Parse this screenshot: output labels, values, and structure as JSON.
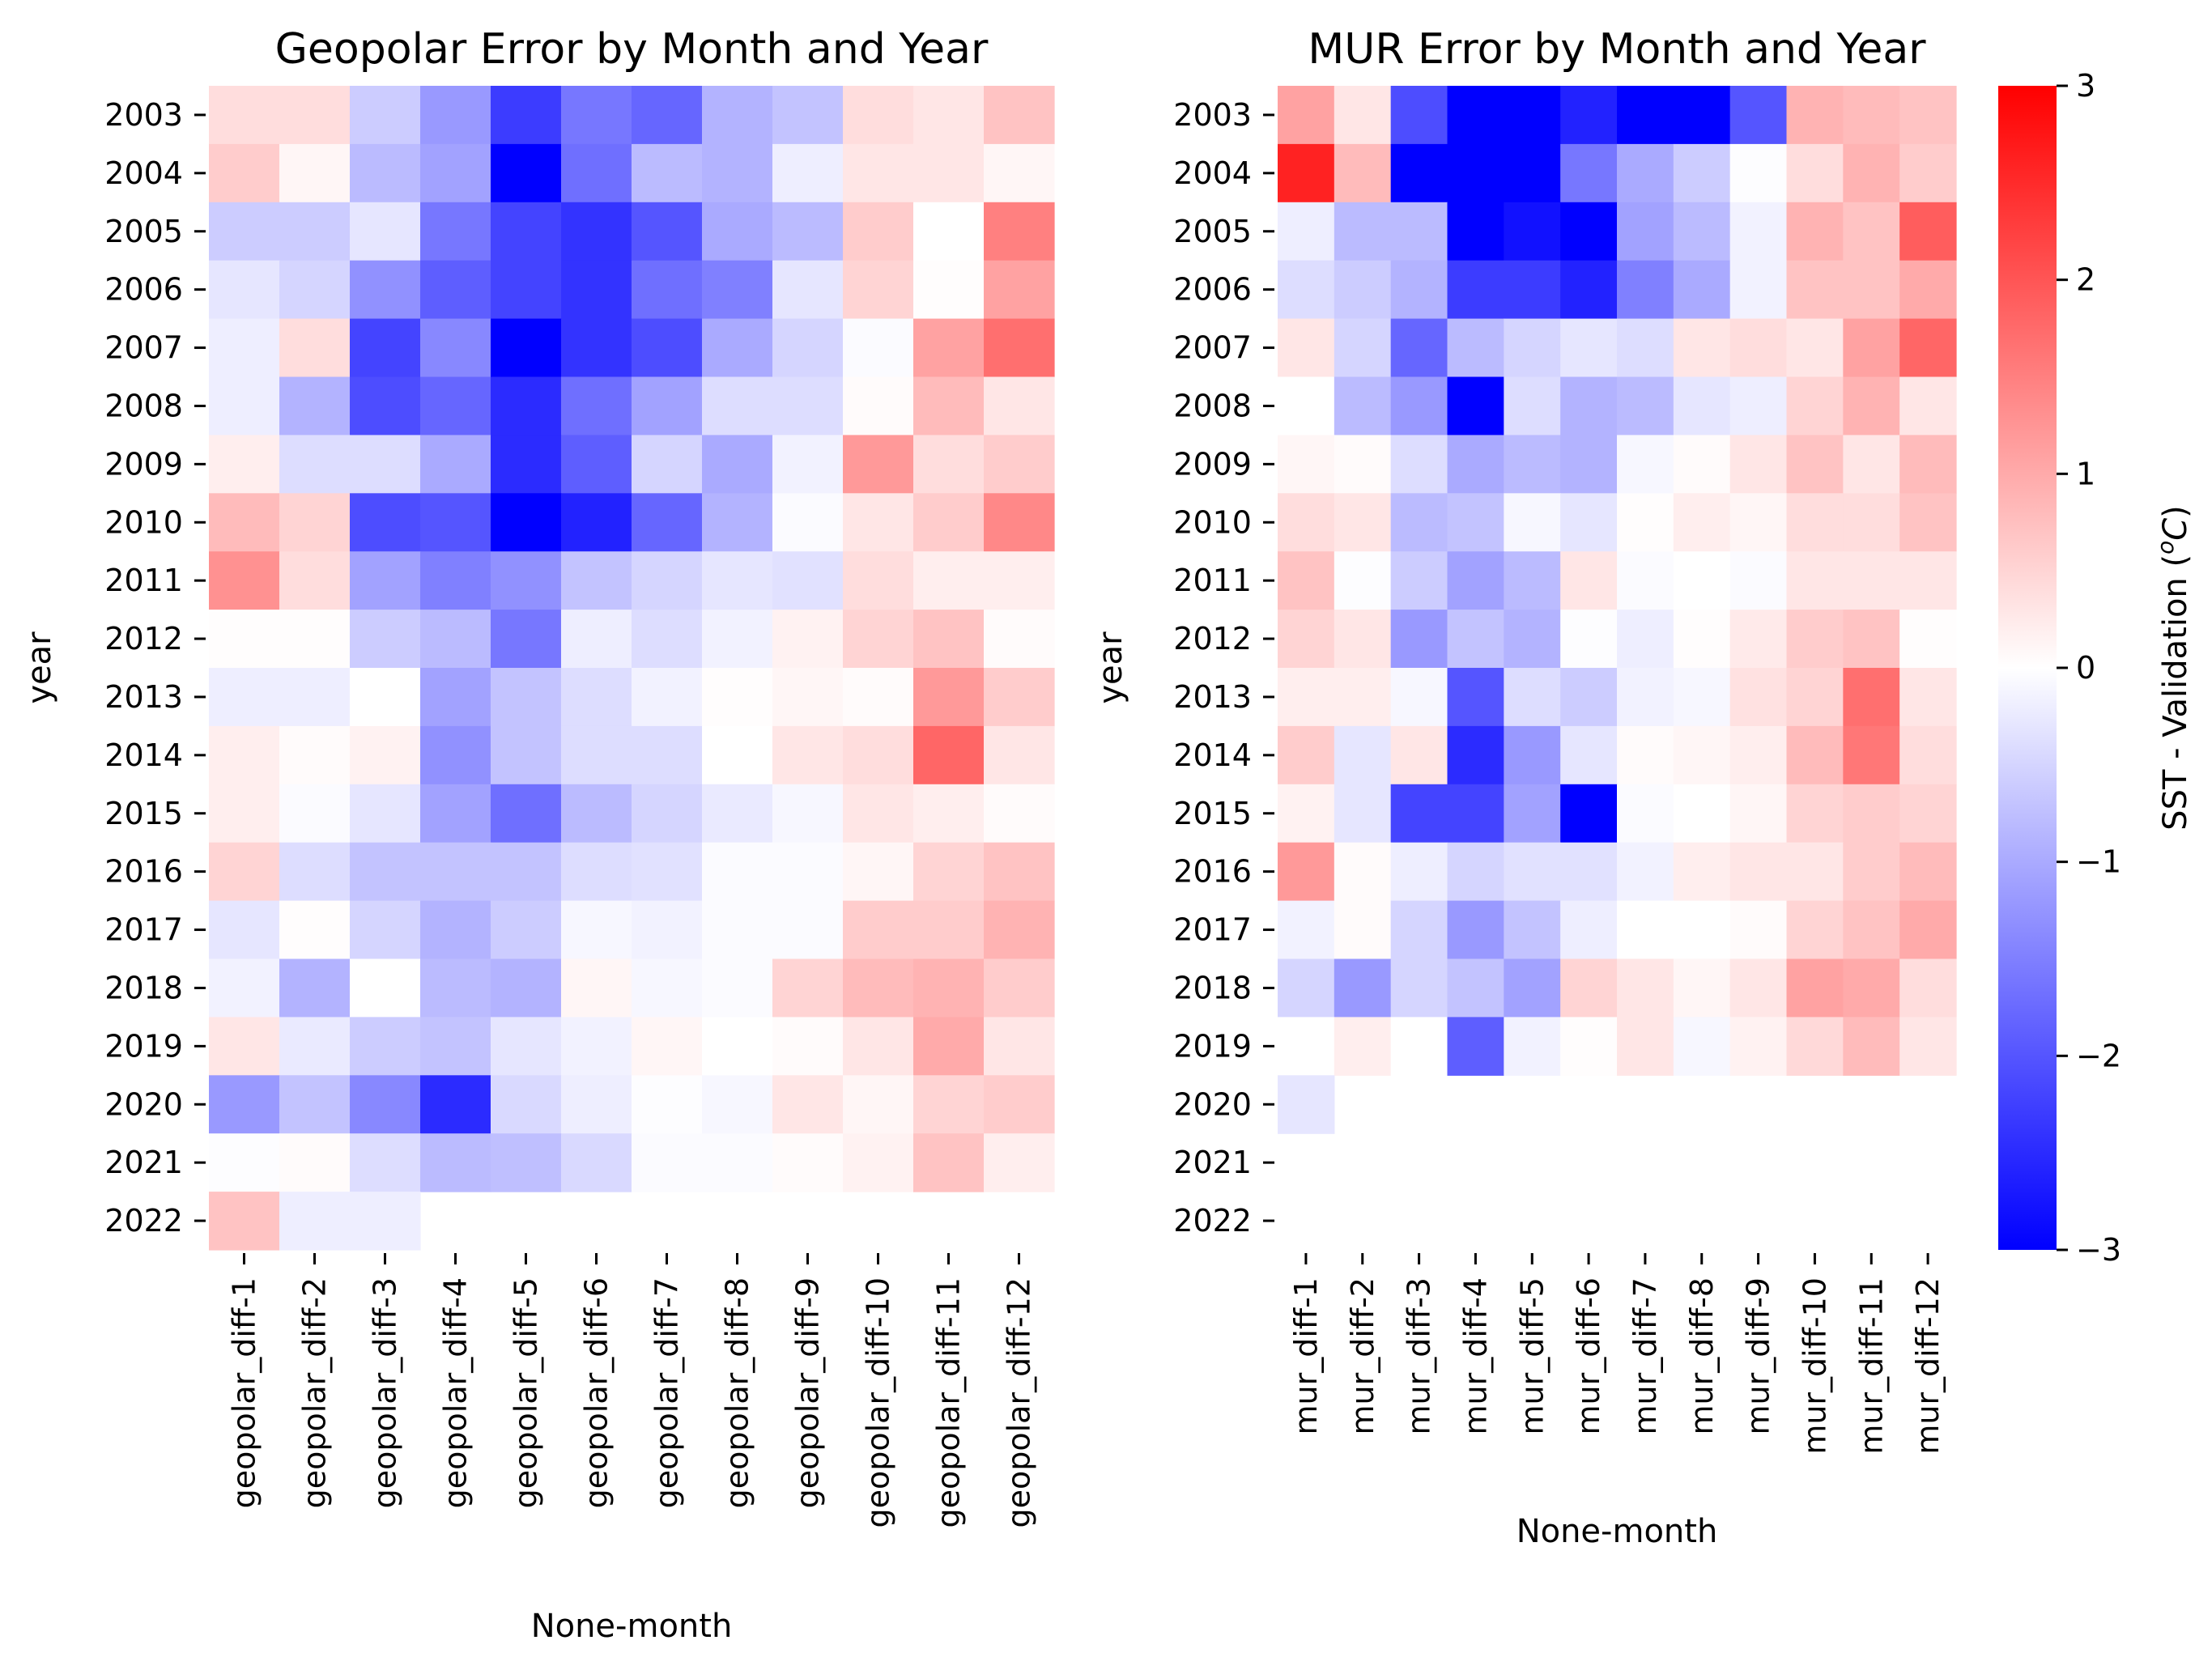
{
  "chart_data": [
    {
      "type": "heatmap",
      "title": "Geopolar Error by Month and Year",
      "xlabel": "None-month",
      "ylabel": "year",
      "columns": [
        "geopolar_diff-1",
        "geopolar_diff-2",
        "geopolar_diff-3",
        "geopolar_diff-4",
        "geopolar_diff-5",
        "geopolar_diff-6",
        "geopolar_diff-7",
        "geopolar_diff-8",
        "geopolar_diff-9",
        "geopolar_diff-10",
        "geopolar_diff-11",
        "geopolar_diff-12"
      ],
      "rows": [
        "2003",
        "2004",
        "2005",
        "2006",
        "2007",
        "2008",
        "2009",
        "2010",
        "2011",
        "2012",
        "2013",
        "2014",
        "2015",
        "2016",
        "2017",
        "2018",
        "2019",
        "2020",
        "2021",
        "2022"
      ],
      "values": [
        [
          0.4,
          0.4,
          -0.6,
          -1.2,
          -2.3,
          -1.6,
          -1.8,
          -0.9,
          -0.7,
          0.4,
          0.3,
          0.7
        ],
        [
          0.6,
          0.1,
          -0.8,
          -1.1,
          -3.0,
          -1.7,
          -0.8,
          -0.9,
          -0.2,
          0.3,
          0.3,
          0.1
        ],
        [
          -0.6,
          -0.6,
          -0.3,
          -1.6,
          -2.2,
          -2.4,
          -2.0,
          -1.0,
          -0.8,
          0.6,
          0.0,
          1.5
        ],
        [
          -0.3,
          -0.5,
          -1.3,
          -1.9,
          -2.2,
          -2.4,
          -1.7,
          -1.5,
          -0.3,
          0.5,
          0.02,
          1.1
        ],
        [
          -0.2,
          0.4,
          -2.2,
          -1.4,
          -3.0,
          -2.4,
          -2.1,
          -1.0,
          -0.5,
          -0.05,
          1.1,
          1.7
        ],
        [
          -0.2,
          -0.9,
          -2.1,
          -1.8,
          -2.5,
          -1.7,
          -1.1,
          -0.4,
          -0.4,
          0.05,
          0.8,
          0.3
        ],
        [
          0.2,
          -0.4,
          -0.4,
          -1.0,
          -2.5,
          -1.9,
          -0.5,
          -1.0,
          -0.15,
          1.2,
          0.4,
          0.6
        ],
        [
          0.8,
          0.5,
          -2.1,
          -2.0,
          -3.0,
          -2.6,
          -1.8,
          -0.9,
          -0.05,
          0.3,
          0.6,
          1.4
        ],
        [
          1.3,
          0.4,
          -1.1,
          -1.5,
          -1.3,
          -0.7,
          -0.5,
          -0.3,
          -0.35,
          0.4,
          0.2,
          0.2
        ],
        [
          0.02,
          0.02,
          -0.6,
          -0.8,
          -1.6,
          -0.2,
          -0.4,
          -0.15,
          0.15,
          0.5,
          0.7,
          0.05
        ],
        [
          -0.2,
          -0.2,
          0.0,
          -1.1,
          -0.7,
          -0.4,
          -0.15,
          0.02,
          0.1,
          0.05,
          1.2,
          0.6
        ],
        [
          0.2,
          0.05,
          0.15,
          -1.3,
          -0.7,
          -0.4,
          -0.4,
          0.0,
          0.3,
          0.4,
          1.8,
          0.3
        ],
        [
          0.2,
          -0.05,
          -0.3,
          -1.1,
          -1.7,
          -0.8,
          -0.5,
          -0.25,
          -0.1,
          0.3,
          0.2,
          0.05
        ],
        [
          0.5,
          -0.4,
          -0.7,
          -0.7,
          -0.7,
          -0.4,
          -0.35,
          -0.05,
          -0.05,
          0.1,
          0.5,
          0.7
        ],
        [
          -0.3,
          0.02,
          -0.5,
          -0.9,
          -0.6,
          -0.1,
          -0.15,
          -0.05,
          -0.05,
          0.6,
          0.6,
          0.9
        ],
        [
          -0.15,
          -0.9,
          0.0,
          -0.8,
          -0.9,
          0.1,
          -0.1,
          -0.05,
          0.5,
          0.8,
          0.9,
          0.6
        ],
        [
          0.3,
          -0.25,
          -0.6,
          -0.7,
          -0.3,
          -0.15,
          0.1,
          0.0,
          0.05,
          0.3,
          1.0,
          0.3
        ],
        [
          -1.2,
          -0.7,
          -1.4,
          -2.5,
          -0.45,
          -0.2,
          -0.02,
          -0.1,
          0.3,
          0.1,
          0.5,
          0.6
        ],
        [
          -0.02,
          0.05,
          -0.4,
          -0.8,
          -0.75,
          -0.45,
          -0.05,
          -0.05,
          0.05,
          0.15,
          0.7,
          0.2
        ],
        [
          0.7,
          -0.2,
          -0.2,
          null,
          null,
          null,
          null,
          null,
          null,
          null,
          null,
          null
        ]
      ],
      "vmin": -3,
      "vmax": 3
    },
    {
      "type": "heatmap",
      "title": "MUR Error by Month and Year",
      "xlabel": "None-month",
      "ylabel": "year",
      "columns": [
        "mur_diff-1",
        "mur_diff-2",
        "mur_diff-3",
        "mur_diff-4",
        "mur_diff-5",
        "mur_diff-6",
        "mur_diff-7",
        "mur_diff-8",
        "mur_diff-9",
        "mur_diff-10",
        "mur_diff-11",
        "mur_diff-12"
      ],
      "rows": [
        "2003",
        "2004",
        "2005",
        "2006",
        "2007",
        "2008",
        "2009",
        "2010",
        "2011",
        "2012",
        "2013",
        "2014",
        "2015",
        "2016",
        "2017",
        "2018",
        "2019",
        "2020",
        "2021",
        "2022"
      ],
      "values": [
        [
          1.1,
          0.3,
          -2.1,
          -3.0,
          -3.0,
          -2.6,
          -3.0,
          -3.0,
          -2.0,
          0.9,
          0.8,
          0.7
        ],
        [
          2.6,
          0.8,
          -3.0,
          -3.0,
          -3.0,
          -1.6,
          -1.0,
          -0.6,
          -0.02,
          0.4,
          0.9,
          0.6
        ],
        [
          -0.2,
          -0.8,
          -0.8,
          -3.0,
          -2.8,
          -3.0,
          -1.1,
          -0.8,
          -0.15,
          0.9,
          0.7,
          1.9
        ],
        [
          -0.4,
          -0.6,
          -0.9,
          -2.3,
          -2.3,
          -2.6,
          -1.5,
          -1.0,
          -0.15,
          0.7,
          0.7,
          1.0
        ],
        [
          0.3,
          -0.5,
          -1.8,
          -0.8,
          -0.5,
          -0.3,
          -0.4,
          0.3,
          0.4,
          0.3,
          1.1,
          1.8
        ],
        [
          0.0,
          -0.8,
          -1.2,
          -3.0,
          -0.4,
          -0.9,
          -0.8,
          -0.3,
          -0.2,
          0.5,
          0.9,
          0.3
        ],
        [
          0.1,
          0.05,
          -0.4,
          -1.0,
          -0.8,
          -0.9,
          -0.1,
          0.05,
          0.3,
          0.7,
          0.3,
          0.8
        ],
        [
          0.4,
          0.3,
          -0.8,
          -0.7,
          -0.1,
          -0.3,
          0.02,
          0.2,
          0.1,
          0.4,
          0.4,
          0.7
        ],
        [
          0.7,
          -0.02,
          -0.6,
          -1.1,
          -0.8,
          0.3,
          -0.05,
          0.0,
          -0.05,
          0.3,
          0.3,
          0.3
        ],
        [
          0.5,
          0.3,
          -1.2,
          -0.7,
          -0.9,
          -0.02,
          -0.2,
          0.02,
          0.25,
          0.6,
          0.7,
          0.02
        ],
        [
          0.2,
          0.2,
          -0.1,
          -2.0,
          -0.4,
          -0.6,
          -0.15,
          -0.1,
          0.35,
          0.5,
          1.7,
          0.3
        ],
        [
          0.6,
          -0.3,
          0.3,
          -2.5,
          -1.2,
          -0.3,
          0.05,
          0.1,
          0.2,
          0.8,
          1.6,
          0.4
        ],
        [
          0.15,
          -0.3,
          -2.2,
          -2.2,
          -1.1,
          -3.0,
          -0.05,
          0.0,
          0.1,
          0.5,
          0.6,
          0.5
        ],
        [
          1.2,
          0.05,
          -0.2,
          -0.5,
          -0.35,
          -0.35,
          -0.15,
          0.2,
          0.3,
          0.3,
          0.6,
          0.8
        ],
        [
          -0.15,
          0.05,
          -0.5,
          -1.2,
          -0.7,
          -0.2,
          0.0,
          0.0,
          0.05,
          0.5,
          0.7,
          1.0
        ],
        [
          -0.5,
          -1.2,
          -0.5,
          -0.7,
          -1.1,
          0.5,
          0.3,
          0.1,
          0.3,
          1.1,
          1.0,
          0.4
        ],
        [
          0.0,
          0.2,
          0.0,
          -1.9,
          -0.15,
          0.02,
          0.3,
          -0.1,
          0.15,
          0.45,
          0.8,
          0.3
        ],
        [
          -0.3,
          null,
          null,
          null,
          null,
          null,
          null,
          null,
          null,
          null,
          null,
          null
        ],
        [
          null,
          null,
          null,
          null,
          null,
          null,
          null,
          null,
          null,
          null,
          null,
          null
        ],
        [
          null,
          null,
          null,
          null,
          null,
          null,
          null,
          null,
          null,
          null,
          null,
          null
        ]
      ],
      "vmin": -3,
      "vmax": 3
    }
  ],
  "colorbar": {
    "label": "SST - Validation (°C)",
    "label_prefix": "SST - Validation (",
    "label_superscript": "o",
    "label_unit": "C",
    "label_suffix": ")",
    "ticks": [
      "3",
      "2",
      "1",
      "0",
      "−1",
      "−2",
      "−3"
    ],
    "tick_values": [
      3,
      2,
      1,
      0,
      -1,
      -2,
      -3
    ],
    "cmap": "bwr",
    "low_color": "#0000ff",
    "mid_color": "#ffffff",
    "high_color": "#ff0000"
  }
}
